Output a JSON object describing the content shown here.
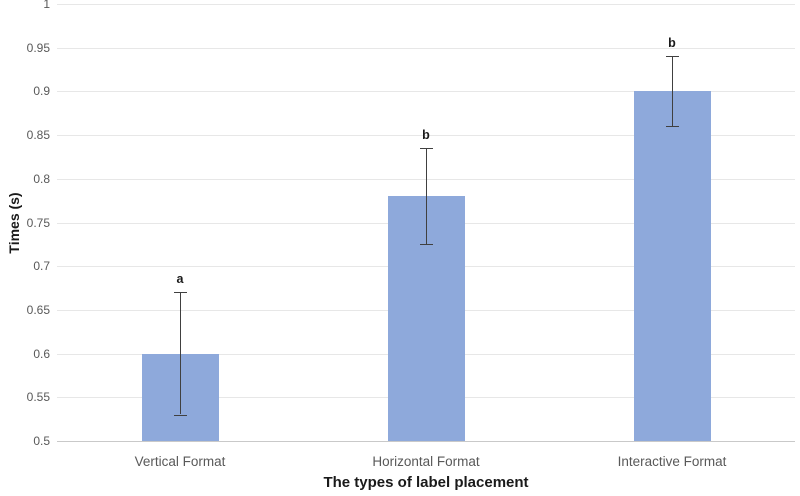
{
  "chart_data": {
    "type": "bar",
    "xlabel": "The types of label placement",
    "ylabel": "Times (s)",
    "categories": [
      "Vertical Format",
      "Horizontal Format",
      "Interactive Format"
    ],
    "values": [
      0.6,
      0.78,
      0.9
    ],
    "error_plus": [
      0.07,
      0.055,
      0.04
    ],
    "error_minus": [
      0.07,
      0.055,
      0.04
    ],
    "sig_letters": [
      "a",
      "b",
      "b"
    ],
    "ylim": [
      0.5,
      1.0
    ],
    "yticks": [
      {
        "label": "1",
        "value": 1.0
      },
      {
        "label": "0.95",
        "value": 0.95
      },
      {
        "label": "0.9",
        "value": 0.9
      },
      {
        "label": "0.85",
        "value": 0.85
      },
      {
        "label": "0.8",
        "value": 0.8
      },
      {
        "label": "0.75",
        "value": 0.75
      },
      {
        "label": "0.7",
        "value": 0.7
      },
      {
        "label": "0.65",
        "value": 0.65
      },
      {
        "label": "0.6",
        "value": 0.6
      },
      {
        "label": "0.55",
        "value": 0.55
      },
      {
        "label": "0.5",
        "value": 0.5
      }
    ],
    "grid": true,
    "legend": false,
    "colors": {
      "bar_fill": "#8EA9DB",
      "gridline": "#E7E7E7",
      "axis_line": "#C9C9C9",
      "error_bar": "#404040",
      "tick_label": "#595959",
      "category_label": "#595959",
      "axis_title": "#1A1A1A",
      "background": "#FFFFFF"
    }
  }
}
